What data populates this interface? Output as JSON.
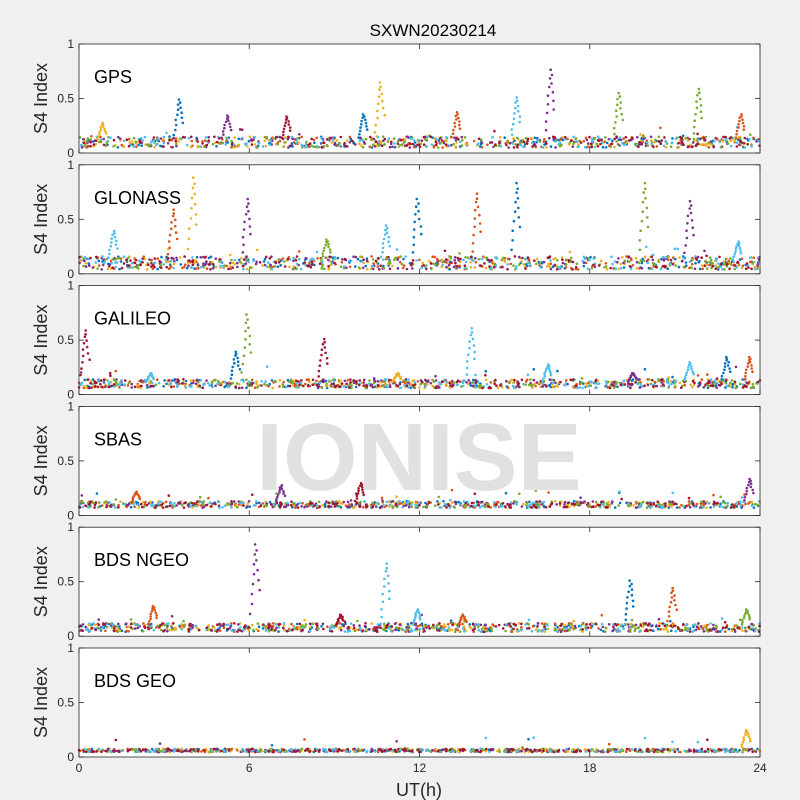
{
  "figure": {
    "title": "SXWN20230214",
    "xlabel": "UT(h)",
    "watermark": "IONISE"
  },
  "colors": {
    "axes_bg": "#ffffff",
    "figure_bg": "#f0f0f0",
    "series": [
      "#0072BD",
      "#D95319",
      "#EDB120",
      "#7E2F8E",
      "#77AC30",
      "#4DBEEE",
      "#A2142F"
    ]
  },
  "chart_data": [
    {
      "type": "scatter",
      "title": "GPS",
      "ylabel": "S4 Index",
      "xlim": [
        0,
        24
      ],
      "ylim": [
        0,
        1
      ],
      "xticks": [
        0,
        6,
        12,
        18,
        24
      ],
      "yticks": [
        0,
        0.5,
        1
      ],
      "baseline": 0.1,
      "noise": 0.05,
      "n_series": 7,
      "spikes": [
        {
          "x": 0.8,
          "y": 0.28,
          "series": 2
        },
        {
          "x": 3.5,
          "y": 0.5,
          "series": 0
        },
        {
          "x": 5.2,
          "y": 0.35,
          "series": 3
        },
        {
          "x": 7.3,
          "y": 0.34,
          "series": 6
        },
        {
          "x": 10.0,
          "y": 0.36,
          "series": 0
        },
        {
          "x": 10.6,
          "y": 0.66,
          "series": 2
        },
        {
          "x": 13.3,
          "y": 0.38,
          "series": 1
        },
        {
          "x": 15.4,
          "y": 0.52,
          "series": 5
        },
        {
          "x": 16.6,
          "y": 0.78,
          "series": 3
        },
        {
          "x": 19.0,
          "y": 0.56,
          "series": 4
        },
        {
          "x": 21.8,
          "y": 0.6,
          "series": 4
        },
        {
          "x": 23.3,
          "y": 0.36,
          "series": 1
        }
      ]
    },
    {
      "type": "scatter",
      "title": "GLONASS",
      "ylabel": "S4 Index",
      "xlim": [
        0,
        24
      ],
      "ylim": [
        0,
        1
      ],
      "xticks": [
        0,
        6,
        12,
        18,
        24
      ],
      "yticks": [
        0,
        0.5,
        1
      ],
      "baseline": 0.1,
      "noise": 0.06,
      "n_series": 7,
      "spikes": [
        {
          "x": 1.2,
          "y": 0.4,
          "series": 5
        },
        {
          "x": 3.3,
          "y": 0.6,
          "series": 1
        },
        {
          "x": 4.0,
          "y": 0.9,
          "series": 2
        },
        {
          "x": 5.9,
          "y": 0.7,
          "series": 3
        },
        {
          "x": 8.7,
          "y": 0.32,
          "series": 4
        },
        {
          "x": 10.8,
          "y": 0.45,
          "series": 5
        },
        {
          "x": 11.9,
          "y": 0.7,
          "series": 0
        },
        {
          "x": 14.0,
          "y": 0.75,
          "series": 1
        },
        {
          "x": 15.4,
          "y": 0.85,
          "series": 0
        },
        {
          "x": 19.9,
          "y": 0.85,
          "series": 4
        },
        {
          "x": 21.5,
          "y": 0.68,
          "series": 3
        },
        {
          "x": 23.2,
          "y": 0.3,
          "series": 5
        }
      ]
    },
    {
      "type": "scatter",
      "title": "GALILEO",
      "ylabel": "S4 Index",
      "xlim": [
        0,
        24
      ],
      "ylim": [
        0,
        1
      ],
      "xticks": [
        0,
        6,
        12,
        18,
        24
      ],
      "yticks": [
        0,
        0.5,
        1
      ],
      "baseline": 0.1,
      "noise": 0.04,
      "n_series": 7,
      "spikes": [
        {
          "x": 0.2,
          "y": 0.6,
          "series": 6
        },
        {
          "x": 2.5,
          "y": 0.2,
          "series": 5
        },
        {
          "x": 5.5,
          "y": 0.4,
          "series": 0
        },
        {
          "x": 5.9,
          "y": 0.75,
          "series": 4
        },
        {
          "x": 8.6,
          "y": 0.52,
          "series": 6
        },
        {
          "x": 11.2,
          "y": 0.2,
          "series": 2
        },
        {
          "x": 13.8,
          "y": 0.62,
          "series": 5
        },
        {
          "x": 16.5,
          "y": 0.28,
          "series": 5
        },
        {
          "x": 19.5,
          "y": 0.2,
          "series": 3
        },
        {
          "x": 21.5,
          "y": 0.3,
          "series": 5
        },
        {
          "x": 22.8,
          "y": 0.35,
          "series": 0
        },
        {
          "x": 23.6,
          "y": 0.35,
          "series": 1
        }
      ]
    },
    {
      "type": "scatter",
      "title": "SBAS",
      "ylabel": "S4 Index",
      "xlim": [
        0,
        24
      ],
      "ylim": [
        0,
        1
      ],
      "xticks": [
        0,
        6,
        12,
        18,
        24
      ],
      "yticks": [
        0,
        0.5,
        1
      ],
      "baseline": 0.1,
      "noise": 0.03,
      "n_series": 7,
      "spikes": [
        {
          "x": 2.0,
          "y": 0.22,
          "series": 1
        },
        {
          "x": 7.1,
          "y": 0.28,
          "series": 3
        },
        {
          "x": 9.9,
          "y": 0.3,
          "series": 6
        },
        {
          "x": 23.6,
          "y": 0.34,
          "series": 3
        }
      ]
    },
    {
      "type": "scatter",
      "title": "BDS NGEO",
      "ylabel": "S4 Index",
      "xlim": [
        0,
        24
      ],
      "ylim": [
        0,
        1
      ],
      "xticks": [
        0,
        6,
        12,
        18,
        24
      ],
      "yticks": [
        0,
        0.5,
        1
      ],
      "baseline": 0.08,
      "noise": 0.04,
      "n_series": 7,
      "spikes": [
        {
          "x": 2.6,
          "y": 0.28,
          "series": 1
        },
        {
          "x": 6.2,
          "y": 0.86,
          "series": 3
        },
        {
          "x": 9.2,
          "y": 0.2,
          "series": 6
        },
        {
          "x": 10.8,
          "y": 0.68,
          "series": 5
        },
        {
          "x": 11.9,
          "y": 0.25,
          "series": 5
        },
        {
          "x": 13.5,
          "y": 0.2,
          "series": 1
        },
        {
          "x": 19.4,
          "y": 0.52,
          "series": 0
        },
        {
          "x": 20.9,
          "y": 0.45,
          "series": 1
        },
        {
          "x": 23.5,
          "y": 0.25,
          "series": 4
        }
      ]
    },
    {
      "type": "scatter",
      "title": "BDS GEO",
      "ylabel": "S4 Index",
      "xlim": [
        0,
        24
      ],
      "ylim": [
        0,
        1
      ],
      "xticks": [
        0,
        6,
        12,
        18,
        24
      ],
      "yticks": [
        0,
        0.5,
        1
      ],
      "baseline": 0.06,
      "noise": 0.015,
      "n_series": 7,
      "spikes": [
        {
          "x": 23.5,
          "y": 0.25,
          "series": 2
        }
      ]
    }
  ]
}
